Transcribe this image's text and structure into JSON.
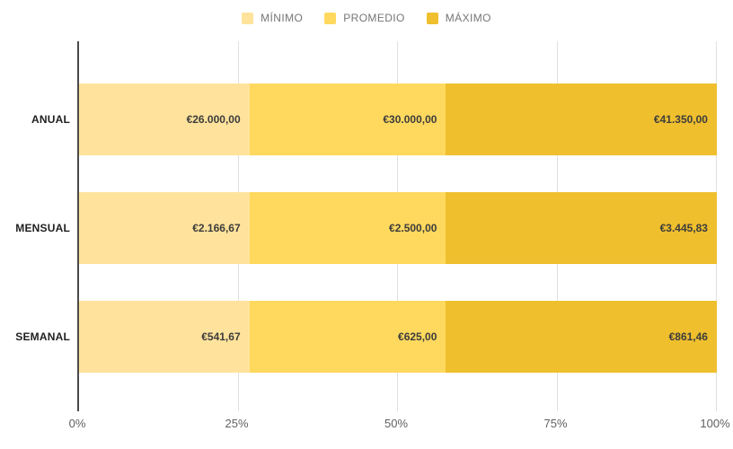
{
  "chart_data": {
    "type": "bar",
    "variant": "stacked-100-percent",
    "orientation": "horizontal",
    "title": "",
    "xlabel": "",
    "ylabel": "",
    "xlim": [
      0,
      100
    ],
    "grid": true,
    "legend_position": "top",
    "x_ticks": [
      "0%",
      "25%",
      "50%",
      "75%",
      "100%"
    ],
    "categories": [
      "ANUAL",
      "MENSUAL",
      "SEMANAL"
    ],
    "series": [
      {
        "key": "minimo",
        "name": "MÍNIMO",
        "color": "#ffe39c",
        "values": [
          26000,
          2166.67,
          541.67
        ],
        "labels": [
          "€26.000,00",
          "€2.166,67",
          "€541,67"
        ]
      },
      {
        "key": "promedio",
        "name": "PROMEDIO",
        "color": "#ffd95e",
        "values": [
          30000,
          2500,
          625
        ],
        "labels": [
          "€30.000,00",
          "€2.500,00",
          "€625,00"
        ]
      },
      {
        "key": "maximo",
        "name": "MÁXIMO",
        "color": "#efbf2e",
        "values": [
          41350,
          3445.83,
          861.46
        ],
        "labels": [
          "€41.350,00",
          "€3.445,83",
          "€861,46"
        ]
      }
    ]
  },
  "colors": {
    "background": "#ffffff",
    "axis_line": "#4a4a4a",
    "gridline": "#e0e0e0",
    "legend_text": "#757575",
    "value_text": "#3c3c3c",
    "category_text": "#1f1f1f",
    "tick_text": "#616161"
  }
}
